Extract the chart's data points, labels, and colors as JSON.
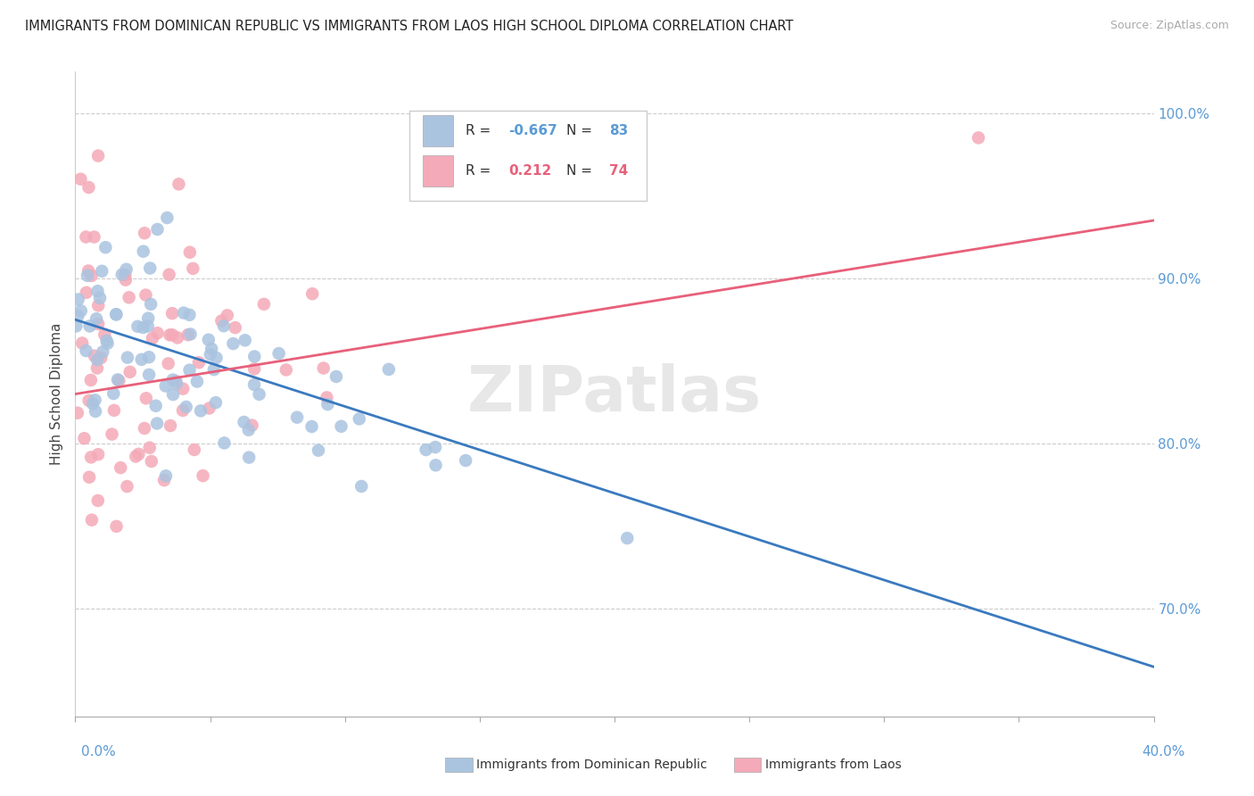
{
  "title": "IMMIGRANTS FROM DOMINICAN REPUBLIC VS IMMIGRANTS FROM LAOS HIGH SCHOOL DIPLOMA CORRELATION CHART",
  "source": "Source: ZipAtlas.com",
  "ylabel": "High School Diploma",
  "blue_color": "#aac4e0",
  "pink_color": "#f4aab8",
  "blue_line_color": "#3a7abf",
  "pink_line_color": "#e8607a",
  "legend_blue_r": "-0.667",
  "legend_blue_n": "83",
  "legend_pink_r": "0.212",
  "legend_pink_n": "74",
  "legend_r_color": "#5b9bd5",
  "legend_n_color": "#5b9bd5",
  "legend_pink_r_color": "#e8607a",
  "legend_pink_n_color": "#e8607a",
  "watermark": "ZIPatlas",
  "xlim": [
    0.0,
    0.4
  ],
  "ylim": [
    0.635,
    1.025
  ],
  "blue_trend": [
    0.875,
    0.665
  ],
  "pink_trend": [
    0.83,
    0.935
  ],
  "yticks": [
    0.7,
    0.8,
    0.9,
    1.0
  ],
  "ytick_labels": [
    "70.0%",
    "80.0%",
    "90.0%",
    "100.0%"
  ],
  "xtick_label_left": "0.0%",
  "xtick_label_right": "40.0%",
  "bottom_legend_blue": "Immigrants from Dominican Republic",
  "bottom_legend_pink": "Immigrants from Laos"
}
